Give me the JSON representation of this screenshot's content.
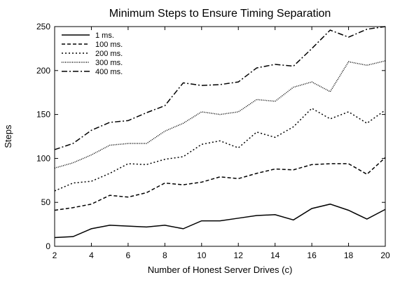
{
  "chart_data": {
    "type": "line",
    "title": "Minimum Steps to Ensure Timing Separation",
    "xlabel": "Number of Honest Server Drives (c)",
    "ylabel": "Steps",
    "x": [
      2,
      3,
      4,
      5,
      6,
      7,
      8,
      9,
      10,
      11,
      12,
      13,
      14,
      15,
      16,
      17,
      18,
      19,
      20
    ],
    "xlim": [
      2,
      20
    ],
    "xticks": [
      2,
      4,
      6,
      8,
      10,
      12,
      14,
      16,
      18,
      20
    ],
    "ylim": [
      0,
      250
    ],
    "yticks": [
      0,
      50,
      100,
      150,
      200,
      250
    ],
    "legend": "upper left",
    "series": [
      {
        "name": "1 ms.",
        "color": "#000000",
        "dash": "none",
        "values": [
          10,
          11,
          20,
          24,
          23,
          22,
          24,
          20,
          29,
          29,
          32,
          35,
          36,
          30,
          43,
          48,
          41,
          31,
          42
        ]
      },
      {
        "name": "100 ms.",
        "color": "#000000",
        "dash": "5,3",
        "values": [
          41,
          44,
          48,
          58,
          56,
          61,
          72,
          70,
          73,
          79,
          77,
          83,
          88,
          87,
          93,
          94,
          94,
          82,
          101
        ]
      },
      {
        "name": "200 ms.",
        "color": "#000000",
        "dash": "2,3",
        "values": [
          63,
          72,
          74,
          83,
          94,
          93,
          99,
          102,
          116,
          120,
          112,
          130,
          124,
          136,
          157,
          145,
          153,
          140,
          155
        ]
      },
      {
        "name": "300 ms.",
        "color": "#000000",
        "dash": "1,1.5",
        "values": [
          89,
          95,
          104,
          115,
          117,
          117,
          131,
          140,
          153,
          150,
          153,
          167,
          165,
          181,
          187,
          176,
          210,
          206,
          211
        ]
      },
      {
        "name": "400 ms.",
        "color": "#000000",
        "dash": "8,3,2,3",
        "values": [
          110,
          117,
          132,
          141,
          143,
          152,
          160,
          186,
          183,
          184,
          187,
          203,
          207,
          205,
          225,
          246,
          238,
          247,
          250
        ]
      }
    ]
  }
}
